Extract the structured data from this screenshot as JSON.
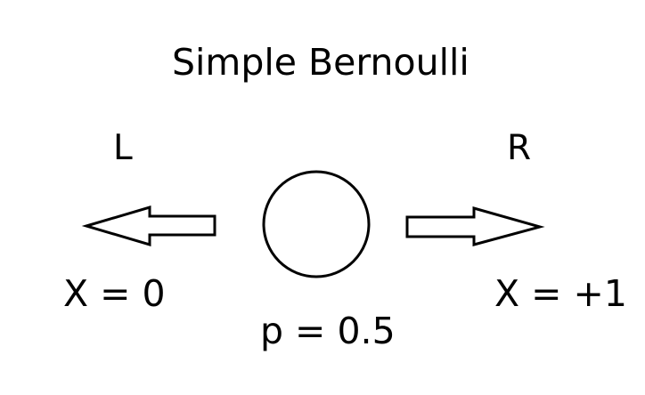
{
  "diagram": {
    "title": "Simple Bernoulli",
    "left": {
      "direction_label": "L",
      "value_label": "X = 0"
    },
    "right": {
      "direction_label": "R",
      "value_label": "X = +1"
    },
    "probability_label": "p = 0.5"
  },
  "colors": {
    "stroke": "#000000",
    "background": "#ffffff"
  }
}
